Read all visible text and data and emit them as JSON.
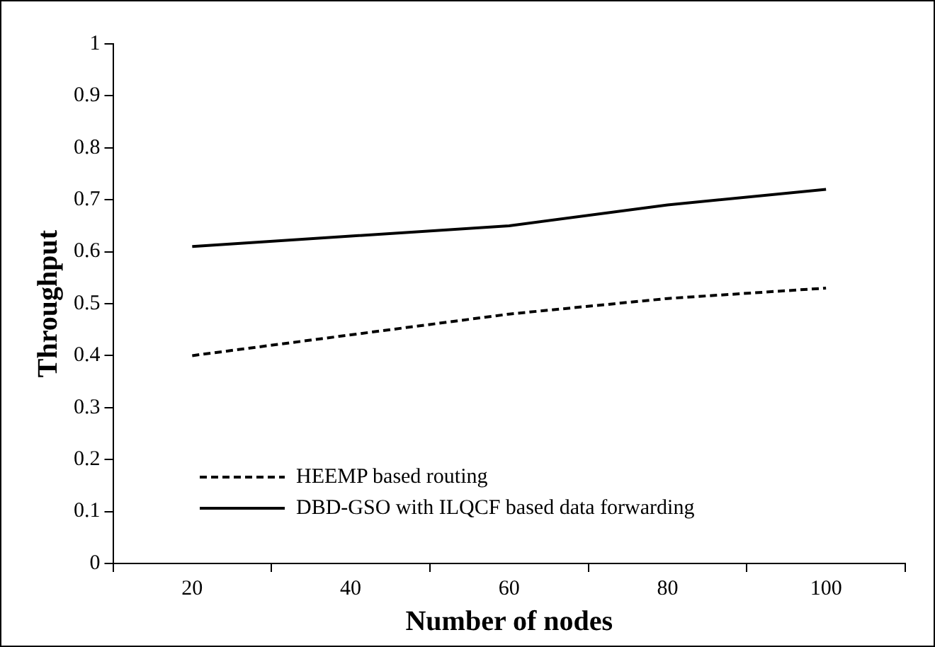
{
  "chart_data": {
    "type": "line",
    "xlabel": "Number of nodes",
    "ylabel": "Throughput",
    "categories": [
      "20",
      "40",
      "60",
      "80",
      "100"
    ],
    "series": [
      {
        "name": "HEEMP based routing",
        "color": "#000000",
        "line_style": "dashed",
        "values": [
          0.4,
          0.44,
          0.48,
          0.51,
          0.53
        ]
      },
      {
        "name": "DBD-GSO with ILQCF based data forwarding",
        "color": "#000000",
        "line_style": "solid",
        "values": [
          0.61,
          0.63,
          0.65,
          0.69,
          0.72
        ]
      }
    ],
    "ylim": [
      0,
      1
    ],
    "yticks": [
      0,
      0.1,
      0.2,
      0.3,
      0.4,
      0.5,
      0.6,
      0.7,
      0.8,
      0.9,
      1
    ],
    "grid": false,
    "legend": "bottom left",
    "marker": "none"
  }
}
